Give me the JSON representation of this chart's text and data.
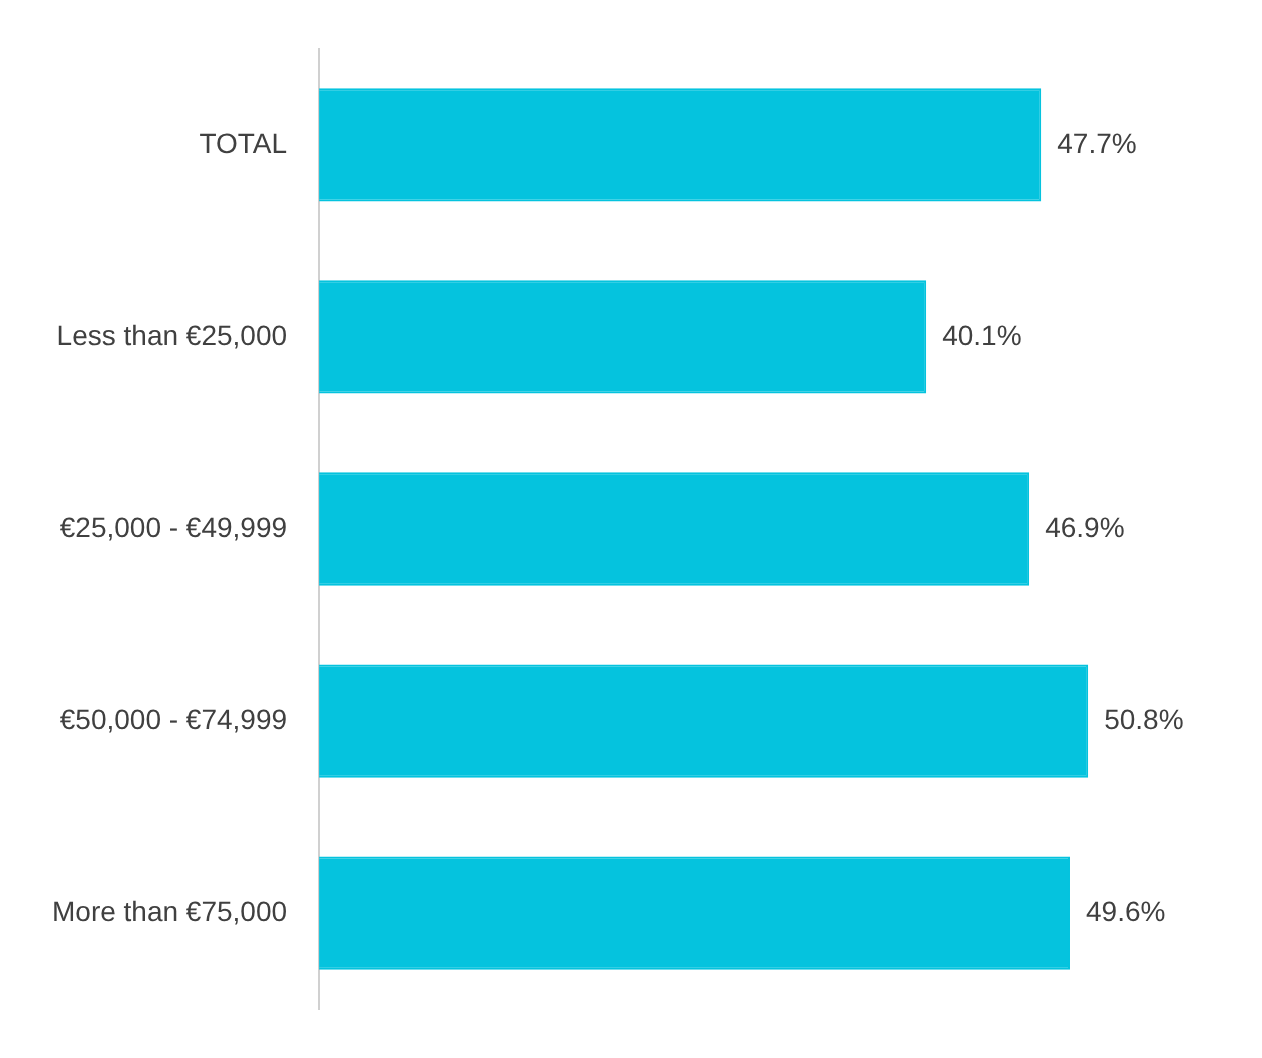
{
  "chart_data": {
    "type": "bar",
    "orientation": "horizontal",
    "categories": [
      "TOTAL",
      "Less than €25,000",
      "€25,000 - €49,999",
      "€50,000 - €74,999",
      "More than €75,000"
    ],
    "values": [
      47.7,
      40.1,
      46.9,
      50.8,
      49.6
    ],
    "color": "#05c3de",
    "value_labels": [
      "47.7%",
      "40.1%",
      "46.9%",
      "50.8%",
      "49.6%"
    ],
    "legend": false
  }
}
